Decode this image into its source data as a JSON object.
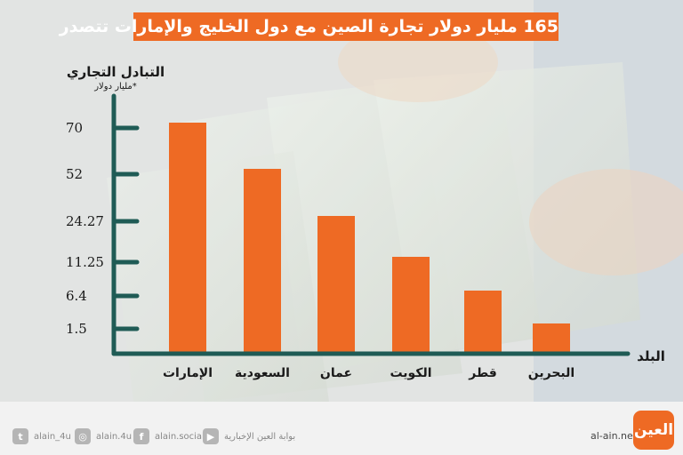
{
  "title": "165 مليار دولار تجارة الصين مع دول الخليج والإمارات تتصدر",
  "colors": {
    "bar": "#ee6a24",
    "axis": "#1f5b55",
    "title_bg": "#ee6a24"
  },
  "chart_data": {
    "type": "bar",
    "title": "165 مليار دولار تجارة الصين مع دول الخليج والإمارات تتصدر",
    "ylabel": "التبادل التجاري",
    "yunit": "*مليار دولار",
    "xlabel": "البلد",
    "categories": [
      "الإمارات",
      "السعودية",
      "عمان",
      "الكويت",
      "قطر",
      "البحرين"
    ],
    "values": [
      70,
      52,
      24.27,
      11.25,
      6.4,
      1.5
    ],
    "ytick_labels": [
      "70",
      "52",
      "24.27",
      "11.25",
      "6.4",
      "1.5"
    ],
    "grid": false,
    "legend": "none"
  },
  "footer": {
    "twitter": {
      "icon": "twitter-icon",
      "label": "alain_4u"
    },
    "instagram": {
      "icon": "instagram-icon",
      "label": "alain.4u"
    },
    "facebook": {
      "icon": "facebook-icon",
      "label": "alain.social"
    },
    "youtube": {
      "icon": "youtube-icon",
      "label": "بوابة العين الإخبارية"
    },
    "site": "al-ain.net",
    "logo_text": "العين"
  }
}
